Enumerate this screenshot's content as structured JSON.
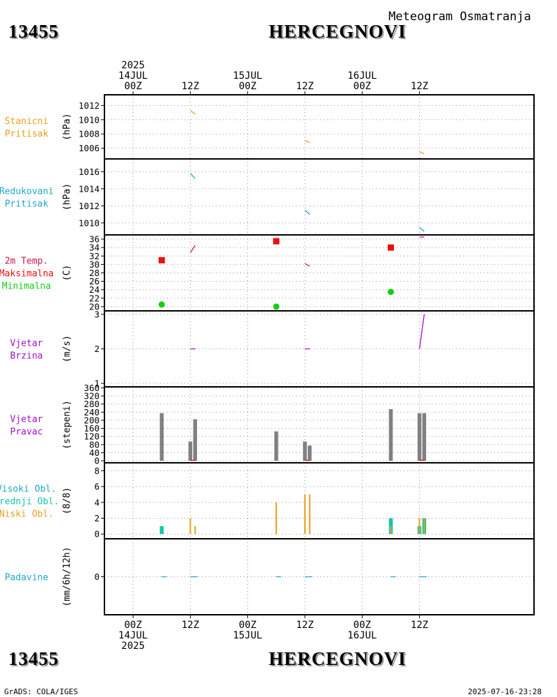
{
  "header": {
    "station_id": "13455",
    "station_name": "HERCEGNOVI",
    "subtitle": "Meteogram Osmatranja"
  },
  "footer": {
    "station_id": "13455",
    "station_name": "HERCEGNOVI",
    "credit": "GrADS: COLA/IGES",
    "timestamp": "2025-07-16-23:28"
  },
  "colors": {
    "orange": "#e8a020",
    "cyan": "#20a8c8",
    "crimson": "#c81850",
    "red": "#e81010",
    "green": "#10d010",
    "purple": "#a010c8",
    "gray": "#808080",
    "teal": "#10c8a8",
    "grid": "#909090"
  },
  "chart_data": {
    "type": "meteogram",
    "time_axis": {
      "unit": "hours since 2025-07-14 00Z",
      "range": [
        -6,
        84
      ],
      "top_labels": [
        {
          "t": 0,
          "lines": [
            "2025",
            "14JUL",
            "00Z"
          ]
        },
        {
          "t": 12,
          "lines": [
            "12Z"
          ]
        },
        {
          "t": 24,
          "lines": [
            "15JUL",
            "00Z"
          ]
        },
        {
          "t": 36,
          "lines": [
            "12Z"
          ]
        },
        {
          "t": 48,
          "lines": [
            "16JUL",
            "00Z"
          ]
        },
        {
          "t": 60,
          "lines": [
            "12Z"
          ]
        }
      ],
      "bottom_labels": [
        {
          "t": 0,
          "lines": [
            "00Z",
            "14JUL",
            "2025"
          ]
        },
        {
          "t": 12,
          "lines": [
            "12Z"
          ]
        },
        {
          "t": 24,
          "lines": [
            "00Z",
            "15JUL"
          ]
        },
        {
          "t": 36,
          "lines": [
            "12Z"
          ]
        },
        {
          "t": 48,
          "lines": [
            "00Z",
            "16JUL"
          ]
        },
        {
          "t": 60,
          "lines": [
            "12Z"
          ]
        }
      ]
    },
    "panels": [
      {
        "id": "stanicni-pritisak",
        "labels": [
          {
            "text": "Stanicni",
            "color": "#e8a020"
          },
          {
            "text": "Pritisak",
            "color": "#e8a020"
          }
        ],
        "unit": "(hPa)",
        "yrange": [
          1004.5,
          1013.5
        ],
        "ticks": [
          1006,
          1008,
          1010,
          1012
        ],
        "series": [
          {
            "kind": "segments",
            "color": "#e8a020",
            "segments": [
              [
                [
                  12,
                  1011.3
                ],
                [
                  13,
                  1010.8
                ]
              ],
              [
                [
                  36,
                  1007.1
                ],
                [
                  37,
                  1006.8
                ]
              ],
              [
                [
                  60,
                  1005.5
                ],
                [
                  61,
                  1005.2
                ]
              ]
            ]
          }
        ]
      },
      {
        "id": "redukovani-pritisak",
        "labels": [
          {
            "text": "Redukovani",
            "color": "#20a8c8"
          },
          {
            "text": "Pritisak",
            "color": "#20a8c8"
          }
        ],
        "unit": "(hPa)",
        "yrange": [
          1008.6,
          1017.5
        ],
        "ticks": [
          1010,
          1012,
          1014,
          1016
        ],
        "series": [
          {
            "kind": "segments",
            "color": "#20a8c8",
            "segments": [
              [
                [
                  12,
                  1015.8
                ],
                [
                  13,
                  1015.2
                ]
              ],
              [
                [
                  36,
                  1011.5
                ],
                [
                  37,
                  1011.0
                ]
              ],
              [
                [
                  60,
                  1009.5
                ],
                [
                  61,
                  1009.0
                ]
              ]
            ]
          }
        ]
      },
      {
        "id": "temperatura",
        "labels": [
          {
            "text": "2m Temp.",
            "color": "#c81850"
          },
          {
            "text": "Maksimalna",
            "color": "#e81010"
          },
          {
            "text": "Minimalna",
            "color": "#10d010"
          }
        ],
        "unit": "(C)",
        "yrange": [
          19,
          37
        ],
        "ticks": [
          20,
          22,
          24,
          26,
          28,
          30,
          32,
          34,
          36
        ],
        "series": [
          {
            "kind": "segments",
            "name": "2m Temp.",
            "color": "#c81850",
            "segments": [
              [
                [
                  12,
                  32.8
                ],
                [
                  13,
                  34.5
                ]
              ],
              [
                [
                  36,
                  30.2
                ],
                [
                  37,
                  29.6
                ]
              ],
              [
                [
                  60,
                  36.5
                ],
                [
                  61,
                  36.5
                ]
              ]
            ]
          },
          {
            "kind": "squares",
            "name": "Maksimalna",
            "color": "#e81010",
            "points": [
              [
                6,
                31.0
              ],
              [
                30,
                35.5
              ],
              [
                54,
                34.0
              ]
            ]
          },
          {
            "kind": "dots",
            "name": "Minimalna",
            "color": "#10d010",
            "points": [
              [
                6,
                20.5
              ],
              [
                30,
                20.0
              ],
              [
                54,
                23.5
              ]
            ]
          }
        ]
      },
      {
        "id": "vjetar-brzina",
        "labels": [
          {
            "text": "Vjetar",
            "color": "#a010c8"
          },
          {
            "text": "Brzina",
            "color": "#a010c8"
          }
        ],
        "unit": "(m/s)",
        "yrange": [
          0.9,
          3.1
        ],
        "ticks": [
          1,
          2,
          3
        ],
        "series": [
          {
            "kind": "segments",
            "color": "#a010c8",
            "segments": [
              [
                [
                  12,
                  2.0
                ],
                [
                  13,
                  2.0
                ]
              ],
              [
                [
                  36,
                  2.0
                ],
                [
                  37,
                  2.0
                ]
              ],
              [
                [
                  60,
                  2.0
                ],
                [
                  61,
                  3.0
                ]
              ]
            ]
          }
        ]
      },
      {
        "id": "vjetar-pravac",
        "labels": [
          {
            "text": "Vjetar",
            "color": "#a010c8"
          },
          {
            "text": "Pravac",
            "color": "#a010c8"
          }
        ],
        "unit": "(stepeni)",
        "yrange": [
          -10,
          365
        ],
        "ticks": [
          0,
          40,
          80,
          120,
          160,
          200,
          240,
          280,
          320,
          360
        ],
        "series": [
          {
            "kind": "bars",
            "color": "#808080",
            "width": 0.8,
            "points": [
              [
                6,
                235
              ],
              [
                12,
                95
              ],
              [
                13,
                205
              ],
              [
                30,
                145
              ],
              [
                36,
                95
              ],
              [
                37,
                75
              ],
              [
                54,
                255
              ],
              [
                60,
                235
              ],
              [
                61,
                235
              ]
            ]
          },
          {
            "kind": "segments",
            "color": "#e81010",
            "segments": [
              [
                [
                  12,
                  2
                ],
                [
                  13,
                  2
                ]
              ],
              [
                [
                  36,
                  2
                ],
                [
                  37,
                  2
                ]
              ],
              [
                [
                  60,
                  2
                ],
                [
                  61,
                  2
                ]
              ]
            ]
          }
        ]
      },
      {
        "id": "oblacnost",
        "labels": [
          {
            "text": "Visoki Obl.",
            "color": "#20a8c8"
          },
          {
            "text": "Srednji Obl.",
            "color": "#10c8a8"
          },
          {
            "text": "Niski Obl.",
            "color": "#e8a020"
          }
        ],
        "unit": "(8/8)",
        "yrange": [
          -0.6,
          9.0
        ],
        "ticks": [
          0,
          2,
          4,
          6,
          8
        ],
        "series": [
          {
            "kind": "bars",
            "name": "Srednji Obl.",
            "color": "#10c8a8",
            "width": 0.8,
            "points": [
              [
                6,
                1
              ],
              [
                54,
                2
              ],
              [
                60,
                1
              ],
              [
                61,
                2
              ]
            ]
          },
          {
            "kind": "bars",
            "name": "Visoki Obl.",
            "color": "#20a8c8",
            "width": 0.3,
            "points": [
              [
                60,
                1
              ],
              [
                61,
                2
              ]
            ]
          },
          {
            "kind": "bars",
            "name": "Niski Obl.",
            "color": "#e8a020",
            "width": 0.3,
            "points": [
              [
                12,
                2
              ],
              [
                13,
                1
              ],
              [
                30,
                4
              ],
              [
                36,
                5
              ],
              [
                37,
                5
              ],
              [
                54,
                1
              ],
              [
                60,
                2
              ],
              [
                61,
                2
              ]
            ]
          }
        ]
      },
      {
        "id": "padavine",
        "labels": [
          {
            "text": "Padavine",
            "color": "#20a8c8"
          }
        ],
        "unit": "(mm/6h/12h)",
        "yrange": [
          -1,
          1
        ],
        "ticks": [
          0
        ],
        "series": [
          {
            "kind": "segments",
            "color": "#20a8c8",
            "segments": [
              [
                [
                  6,
                  0
                ],
                [
                  7,
                  0
                ]
              ],
              [
                [
                  12,
                  0
                ],
                [
                  13.5,
                  0
                ]
              ],
              [
                [
                  30,
                  0
                ],
                [
                  31,
                  0
                ]
              ],
              [
                [
                  36,
                  0
                ],
                [
                  37.5,
                  0
                ]
              ],
              [
                [
                  54,
                  0
                ],
                [
                  55,
                  0
                ]
              ],
              [
                [
                  60,
                  0
                ],
                [
                  61.5,
                  0
                ]
              ]
            ]
          }
        ]
      }
    ]
  }
}
